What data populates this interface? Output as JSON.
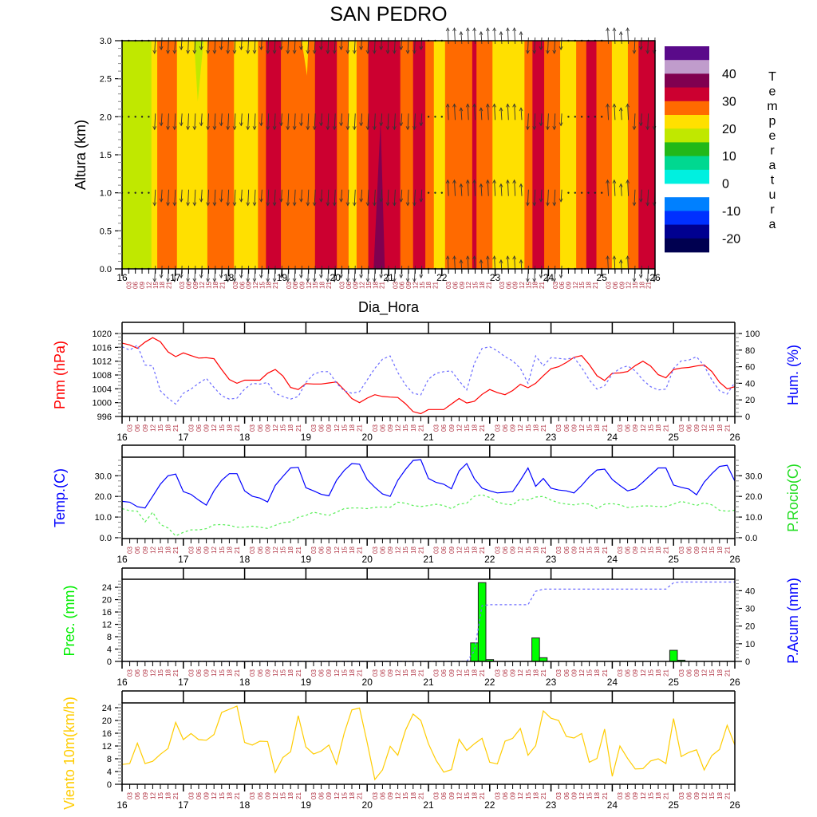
{
  "title": "SAN PEDRO",
  "time_axis": {
    "label": "Dia_Hora",
    "day_labels": [
      "16",
      "17",
      "18",
      "19",
      "20",
      "21",
      "22",
      "23",
      "24",
      "25",
      "26"
    ],
    "hour_labels": [
      "03",
      "06",
      "09",
      "12",
      "15",
      "18",
      "21"
    ],
    "xlim": [
      16,
      26
    ],
    "step_hours": 3
  },
  "chart_data": [
    {
      "type": "heatmap",
      "ylabel": "Altura (km)",
      "ylim": [
        0,
        3
      ],
      "yticks": [
        "0.0",
        "0.5",
        "1.0",
        "1.5",
        "2.0",
        "2.5",
        "3.0"
      ],
      "colorbar": {
        "title": "Temperatura",
        "colors": [
          "#5a0a8a",
          "#c09ccc",
          "#800050",
          "#cc0030",
          "#ff6a00",
          "#ffe000",
          "#c0e800",
          "#22b818",
          "#00d890",
          "#00f0e0",
          "#ffffff",
          "#0080ff",
          "#0030ff",
          "#000090",
          "#000050"
        ],
        "labels": [
          "40",
          "30",
          "20",
          "10",
          "0",
          "-10",
          "-20"
        ]
      },
      "bands": [
        [
          16.0,
          16.55,
          "#c0e800"
        ],
        [
          16.55,
          16.66,
          "#ffe000"
        ],
        [
          16.66,
          17.03,
          "#ff6a00"
        ],
        [
          17.03,
          17.6,
          "#ffe000"
        ],
        [
          17.6,
          18.1,
          "#ff6a00"
        ],
        [
          18.1,
          18.55,
          "#ffe000"
        ],
        [
          18.55,
          18.7,
          "#ff6a00"
        ],
        [
          18.7,
          18.98,
          "#cc0030"
        ],
        [
          18.98,
          19.62,
          "#ff6a00"
        ],
        [
          19.62,
          20.03,
          "#cc0030"
        ],
        [
          20.03,
          20.25,
          "#ff6a00"
        ],
        [
          20.25,
          20.4,
          "#ffe000"
        ],
        [
          20.4,
          20.62,
          "#ff6a00"
        ],
        [
          20.62,
          21.22,
          "#cc0030"
        ],
        [
          21.22,
          21.46,
          "#ff6a00"
        ],
        [
          21.46,
          21.69,
          "#cc0030"
        ],
        [
          21.69,
          21.85,
          "#ff6a00"
        ],
        [
          21.85,
          22.06,
          "#ffe000"
        ],
        [
          22.06,
          22.57,
          "#ff6a00"
        ],
        [
          22.57,
          22.65,
          "#cc0030"
        ],
        [
          22.65,
          22.95,
          "#ff6a00"
        ],
        [
          22.95,
          23.55,
          "#ffe000"
        ],
        [
          23.55,
          23.7,
          "#ff6a00"
        ],
        [
          23.7,
          23.92,
          "#cc0030"
        ],
        [
          23.92,
          24.22,
          "#ff6a00"
        ],
        [
          24.22,
          24.52,
          "#ffe000"
        ],
        [
          24.52,
          24.71,
          "#ff6a00"
        ],
        [
          24.71,
          24.9,
          "#cc0030"
        ],
        [
          24.9,
          25.19,
          "#ff6a00"
        ],
        [
          25.19,
          25.49,
          "#ffe000"
        ],
        [
          25.49,
          25.69,
          "#ff6a00"
        ],
        [
          25.69,
          26.0,
          "#cc0030"
        ]
      ],
      "patches": [
        {
          "color": "#800050",
          "points": [
            [
              20.72,
              0
            ],
            [
              20.93,
              0
            ],
            [
              20.85,
              1.95
            ]
          ]
        },
        {
          "color": "#c0e800",
          "points": [
            [
              17.35,
              3
            ],
            [
              17.53,
              3
            ],
            [
              17.42,
              2.2
            ]
          ]
        },
        {
          "color": "#ffe000",
          "points": [
            [
              19.37,
              3
            ],
            [
              19.5,
              3
            ],
            [
              19.47,
              2.54
            ]
          ]
        }
      ],
      "wind_levels_km": [
        0,
        1,
        2,
        3
      ],
      "wind_direction_segments": [
        [
          16.0,
          16.5,
          "calm"
        ],
        [
          16.5,
          21.7,
          "down"
        ],
        [
          21.7,
          22.0,
          "calm"
        ],
        [
          22.0,
          23.6,
          "up"
        ],
        [
          23.6,
          24.3,
          "down"
        ],
        [
          24.3,
          25.0,
          "calm"
        ],
        [
          25.0,
          25.5,
          "up"
        ],
        [
          25.5,
          26.0,
          "down"
        ]
      ]
    },
    {
      "type": "line",
      "ylabel": "Pnm (hPa)",
      "ylabel_color": "#ff0000",
      "ylim": [
        996,
        1020
      ],
      "yticks": [
        996,
        1000,
        1004,
        1008,
        1012,
        1016,
        1020
      ],
      "y2label": "Hum. (%)",
      "y2label_color": "#0000ff",
      "y2lim": [
        0,
        100
      ],
      "y2ticks": [
        0,
        20,
        40,
        60,
        80,
        100
      ],
      "series": [
        {
          "axis": "left",
          "color": "#ff0000",
          "style": "solid",
          "values": [
            1017.2,
            1016.7,
            1015.7,
            1017.5,
            1018.8,
            1017.6,
            1014.7,
            1013.3,
            1014.4,
            1013.6,
            1012.9,
            1013.0,
            1012.7,
            1009.6,
            1006.7,
            1005.6,
            1006.5,
            1006.5,
            1006.5,
            1008.5,
            1009.6,
            1007.7,
            1004.4,
            1003.8,
            1005.5,
            1005.4,
            1005.4,
            1005.7,
            1006.0,
            1003.7,
            1001.2,
            1000.0,
            1001.3,
            1002.3,
            1001.8,
            1001.6,
            1001.5,
            999.7,
            997.4,
            996.8,
            998.0,
            998.0,
            998.0,
            999.6,
            1001.2,
            999.9,
            1000.4,
            1002.4,
            1003.8,
            1002.9,
            1002.3,
            1003.5,
            1005.3,
            1004.3,
            1005.6,
            1007.8,
            1009.8,
            1010.4,
            1011.6,
            1013.1,
            1013.6,
            1011.0,
            1007.8,
            1006.4,
            1008.5,
            1008.6,
            1009.0,
            1010.7,
            1012.0,
            1010.6,
            1008.1,
            1007.2,
            1009.6,
            1010.0,
            1010.2,
            1010.6,
            1010.9,
            1009.0,
            1005.9,
            1004.0,
            1004.6
          ]
        },
        {
          "axis": "right",
          "color": "#6a6aff",
          "style": "dashed",
          "values": [
            84,
            80,
            86,
            62,
            61,
            31,
            22,
            15,
            28,
            33,
            40,
            46,
            35,
            25,
            21,
            22,
            33,
            40,
            39,
            41,
            28,
            24,
            21,
            24,
            41,
            51,
            54,
            54,
            40,
            31,
            28,
            30,
            44,
            58,
            69,
            73,
            53,
            38,
            28,
            26,
            45,
            52,
            54,
            55,
            43,
            32,
            64,
            82,
            84,
            79,
            72,
            67,
            58,
            40,
            73,
            61,
            71,
            70,
            69,
            71,
            59,
            44,
            33,
            37,
            51,
            58,
            61,
            55,
            44,
            36,
            32,
            33,
            58,
            67,
            68,
            72,
            61,
            44,
            31,
            27,
            41
          ]
        }
      ]
    },
    {
      "type": "line",
      "ylabel": "Temp.(C)",
      "ylabel_color": "#0000ff",
      "ylim": [
        -0.4,
        39
      ],
      "yticks": [
        "0.0",
        "10.0",
        "20.0",
        "30.0"
      ],
      "y2label": "P.Rocio(C)",
      "y2label_color": "#22dd22",
      "y2lim": [
        -0.4,
        39
      ],
      "y2ticks": [
        "0.0",
        "10.0",
        "20.0",
        "30.0"
      ],
      "series": [
        {
          "axis": "left",
          "color": "#0000ff",
          "style": "solid",
          "values": [
            17.6,
            17.2,
            15.0,
            14.4,
            20.1,
            25.9,
            30.0,
            30.8,
            22.3,
            21.0,
            18.2,
            15.8,
            22.7,
            27.8,
            31.0,
            31.0,
            22.7,
            20.1,
            19.2,
            17.3,
            25.3,
            29.7,
            33.8,
            34.1,
            24.2,
            22.7,
            21.0,
            20.3,
            27.8,
            32.6,
            35.9,
            35.6,
            28.2,
            24.4,
            21.2,
            20.0,
            27.8,
            33.0,
            37.4,
            37.8,
            28.7,
            26.8,
            25.9,
            23.7,
            32.3,
            35.9,
            28.5,
            24.0,
            22.7,
            21.7,
            22.0,
            22.3,
            27.8,
            33.8,
            24.9,
            28.7,
            24.0,
            23.1,
            22.7,
            21.7,
            25.3,
            29.5,
            32.8,
            33.2,
            28.2,
            25.3,
            22.7,
            23.7,
            26.9,
            30.4,
            33.8,
            33.8,
            25.5,
            24.4,
            23.6,
            20.8,
            26.9,
            31.0,
            34.5,
            35.1,
            27.4
          ]
        },
        {
          "axis": "right",
          "color": "#55ee55",
          "style": "dashed",
          "values": [
            14.1,
            13.1,
            12.8,
            7.6,
            12.4,
            6.4,
            4.7,
            0.9,
            2.6,
            3.8,
            3.8,
            4.4,
            6.2,
            6.4,
            6.0,
            5.1,
            5.1,
            5.6,
            5.1,
            4.5,
            6.0,
            7.3,
            7.7,
            9.9,
            10.8,
            12.4,
            11.5,
            10.8,
            12.4,
            14.1,
            14.4,
            14.4,
            14.1,
            14.7,
            14.9,
            14.7,
            17.2,
            16.7,
            15.6,
            15.1,
            15.6,
            16.2,
            15.6,
            14.1,
            16.3,
            16.7,
            20.1,
            20.8,
            19.5,
            17.2,
            16.3,
            15.9,
            18.8,
            18.2,
            19.7,
            20.0,
            18.2,
            16.9,
            16.3,
            15.9,
            16.5,
            16.3,
            14.1,
            16.3,
            16.5,
            15.9,
            14.6,
            15.0,
            15.4,
            15.4,
            15.1,
            15.1,
            16.3,
            17.6,
            16.7,
            15.6,
            16.9,
            15.9,
            13.3,
            12.8,
            13.3
          ]
        }
      ]
    },
    {
      "type": "bar",
      "ylabel": "Prec. (mm)",
      "ylabel_color": "#00ee00",
      "ylim": [
        0,
        26.6
      ],
      "yticks": [
        0,
        4,
        8,
        12,
        16,
        20,
        24
      ],
      "y2label": "P.Acum (mm)",
      "y2label_color": "#0000ff",
      "y2lim": [
        0,
        46.5
      ],
      "y2ticks": [
        0,
        10,
        20,
        30,
        40
      ],
      "bar_color": "#00ff00",
      "bars": [
        [
          21.75,
          6.0
        ],
        [
          21.875,
          25.5
        ],
        [
          22.0,
          0.6
        ],
        [
          22.75,
          7.6
        ],
        [
          22.875,
          1.2
        ],
        [
          25.0,
          3.6
        ],
        [
          25.125,
          0.4
        ]
      ],
      "accum_color": "#6a6aff"
    },
    {
      "type": "line",
      "ylabel": "Viento 10m(km/h)",
      "ylabel_color": "#ffcc00",
      "ylim": [
        0,
        25.5
      ],
      "yticks": [
        0,
        4,
        8,
        12,
        16,
        20,
        24
      ],
      "series": [
        {
          "axis": "left",
          "color": "#ffcc00",
          "style": "solid",
          "values": [
            6.2,
            6.5,
            12.9,
            6.5,
            7.2,
            9.4,
            11.2,
            19.4,
            14.0,
            15.9,
            14.0,
            13.8,
            15.6,
            22.5,
            23.5,
            24.5,
            13.1,
            12.3,
            13.5,
            13.4,
            3.7,
            8.4,
            10.2,
            21.5,
            11.7,
            9.5,
            10.4,
            12.3,
            6.3,
            16.0,
            23.3,
            23.9,
            13.1,
            1.5,
            4.5,
            11.9,
            9.1,
            16.9,
            22.0,
            20.0,
            12.7,
            7.5,
            3.8,
            4.6,
            14.1,
            10.6,
            12.7,
            14.4,
            6.9,
            6.4,
            13.5,
            14.4,
            17.5,
            9.1,
            12.1,
            23.0,
            20.7,
            20.0,
            15.0,
            14.5,
            15.9,
            6.9,
            8.1,
            17.3,
            2.5,
            12.0,
            8.1,
            4.8,
            4.9,
            7.3,
            8.0,
            6.5,
            20.6,
            8.7,
            10.0,
            10.8,
            4.5,
            9.0,
            10.9,
            18.5,
            12.3
          ]
        }
      ]
    }
  ]
}
